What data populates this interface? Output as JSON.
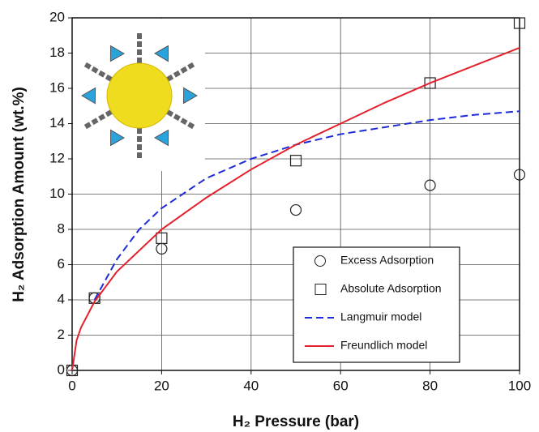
{
  "chart_data": {
    "type": "scatter",
    "x_label": "H₂ Pressure (bar)",
    "y_label": "H₂ Adsorption Amount (wt.%)",
    "xlim": [
      0,
      100
    ],
    "xticks": [
      0,
      20,
      40,
      60,
      80,
      100
    ],
    "ylim": [
      0,
      20
    ],
    "yticks": [
      0,
      2,
      4,
      6,
      8,
      10,
      12,
      14,
      16,
      18,
      20
    ],
    "grid": true,
    "legend": "lower right",
    "series": [
      {
        "name": "Excess Adsorption",
        "color": "#222222",
        "mode": "markers",
        "marker": "circle",
        "x": [
          0,
          5,
          20,
          50,
          80,
          100
        ],
        "values": [
          0,
          4.1,
          6.9,
          9.1,
          10.5,
          11.1
        ]
      },
      {
        "name": "Absolute Adsorption",
        "color": "#222222",
        "mode": "markers",
        "marker": "square",
        "x": [
          0,
          5,
          20,
          50,
          80,
          100
        ],
        "values": [
          0,
          4.1,
          7.5,
          11.9,
          16.3,
          19.7
        ]
      },
      {
        "name": "Langmuir model",
        "color": "#1f2bd6",
        "mode": "line",
        "dash": true,
        "x": [
          5,
          10,
          15,
          20,
          30,
          40,
          50,
          60,
          70,
          80,
          90,
          100
        ],
        "values": [
          4.0,
          6.3,
          8.0,
          9.2,
          10.9,
          12.0,
          12.8,
          13.4,
          13.8,
          14.2,
          14.5,
          14.7
        ]
      },
      {
        "name": "Freundlich model",
        "color": "#e3202b",
        "mode": "line",
        "dash": false,
        "x": [
          0,
          1,
          2,
          5,
          10,
          20,
          30,
          40,
          50,
          60,
          70,
          80,
          90,
          100
        ],
        "values": [
          0,
          1.71,
          2.44,
          3.9,
          5.6,
          8.0,
          9.8,
          11.4,
          12.8,
          14.0,
          15.2,
          16.3,
          17.3,
          18.3
        ]
      }
    ]
  }
}
